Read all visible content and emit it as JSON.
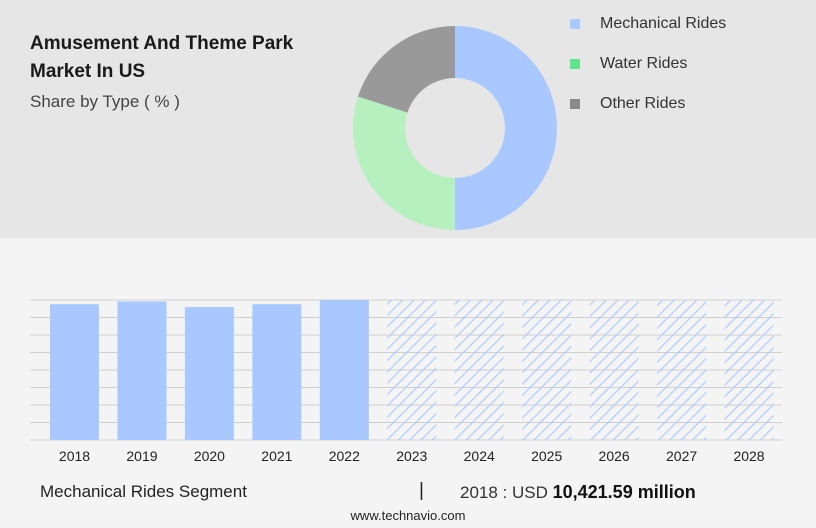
{
  "header": {
    "title": "Amusement And Theme Park Market In US",
    "subtitle": "Share by Type ( % )"
  },
  "legend": [
    {
      "label": "Mechanical Rides",
      "color": "#a8c8ff"
    },
    {
      "label": "Water Rides",
      "color": "#5de38a"
    },
    {
      "label": "Other Rides",
      "color": "#8c8c8c"
    }
  ],
  "chart_data": [
    {
      "type": "pie",
      "donut": true,
      "slices": [
        {
          "label": "Mechanical Rides",
          "value": 50,
          "color": "#a8c8ff"
        },
        {
          "label": "Water Rides",
          "value": 30,
          "color": "#b7f0bf"
        },
        {
          "label": "Other Rides",
          "value": 20,
          "color": "#999999"
        }
      ]
    },
    {
      "type": "bar",
      "categories": [
        "2018",
        "2019",
        "2020",
        "2021",
        "2022",
        "2023",
        "2024",
        "2025",
        "2026",
        "2027",
        "2028"
      ],
      "values": [
        97,
        99,
        95,
        97,
        100,
        100,
        100,
        100,
        100,
        100,
        100
      ],
      "forecast_from_index": 5,
      "color": "#a8c8ff",
      "ylim": [
        0,
        100
      ],
      "grid": true
    }
  ],
  "footer": {
    "segment_label": "Mechanical Rides Segment",
    "separator": "|",
    "year_label": "2018 : USD",
    "value": "10,421.59 million",
    "source": "www.technavio.com"
  }
}
